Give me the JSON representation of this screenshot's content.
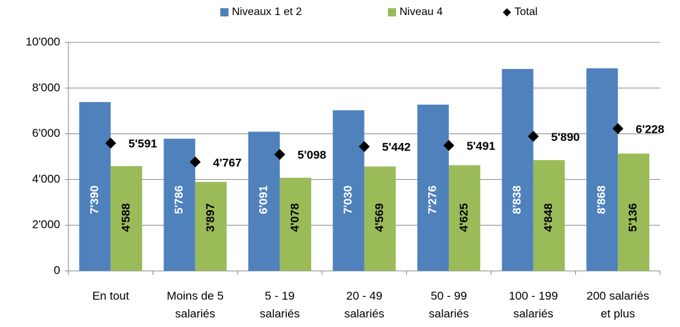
{
  "chart_data": {
    "type": "bar",
    "categories": [
      "En tout",
      "Moins de 5\nsalariés",
      "5 - 19\nsalariés",
      "20 - 49\nsalariés",
      "50 - 99\nsalariés",
      "100 - 199\nsalariés",
      "200 salariés\net plus"
    ],
    "series": [
      {
        "name": "Niveaux 1 et 2",
        "type": "bar",
        "color": "#4f81bd",
        "values": [
          7390,
          5786,
          6091,
          7030,
          7276,
          8838,
          8868
        ],
        "value_labels": [
          "7'390",
          "5'786",
          "6'091",
          "7'030",
          "7'276",
          "8'838",
          "8'868"
        ]
      },
      {
        "name": "Niveau 4",
        "type": "bar",
        "color": "#9bbb59",
        "values": [
          4588,
          3897,
          4078,
          4569,
          4625,
          4848,
          5136
        ],
        "value_labels": [
          "4'588",
          "3'897",
          "4'078",
          "4'569",
          "4'625",
          "4'848",
          "5'136"
        ]
      },
      {
        "name": "Total",
        "type": "scatter",
        "color": "#000000",
        "values": [
          5591,
          4767,
          5098,
          5442,
          5491,
          5890,
          6228
        ],
        "value_labels": [
          "5'591",
          "4'767",
          "5'098",
          "5'442",
          "5'491",
          "5'890",
          "6'228"
        ]
      }
    ],
    "ylim": [
      0,
      10000
    ],
    "yticks": [
      0,
      {
        "value": 2000,
        "label": "2'000"
      },
      {
        "value": 4000,
        "label": "4'000"
      },
      {
        "value": 6000,
        "label": "6'000"
      },
      {
        "value": 8000,
        "label": "8'000"
      },
      {
        "value": 10000,
        "label": "10'000"
      }
    ],
    "grid": true,
    "legend": "top"
  }
}
